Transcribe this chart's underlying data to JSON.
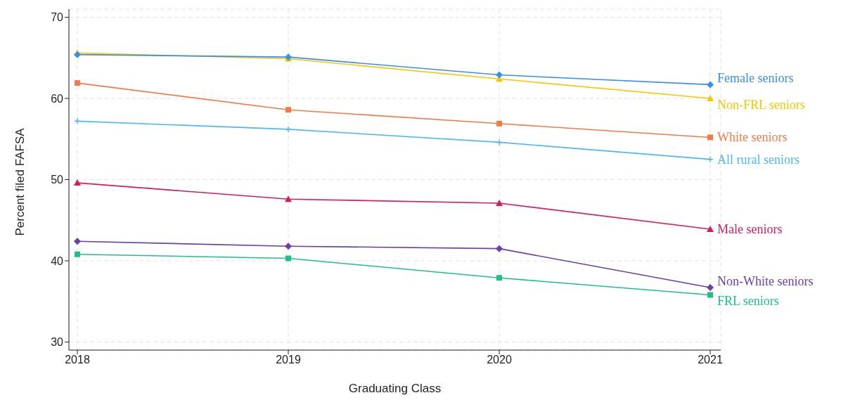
{
  "chart_data": {
    "type": "line",
    "xlabel": "Graduating Class",
    "ylabel": "Percent filed FAFSA",
    "x": [
      2018,
      2019,
      2020,
      2021
    ],
    "xlim": [
      2017.96,
      2021.05
    ],
    "xticks": [
      2018,
      2019,
      2020,
      2021
    ],
    "ylim": [
      29,
      71
    ],
    "yticks": [
      30,
      40,
      50,
      60,
      70
    ],
    "grid": true,
    "legend": false,
    "series": [
      {
        "name": "Female seniors",
        "color": "#3a8ef0",
        "marker": "diamond",
        "values": [
          65.4,
          65.1,
          62.9,
          61.7
        ]
      },
      {
        "name": "Non-FRL seniors",
        "color": "#f5c800",
        "marker": "triangle",
        "values": [
          65.6,
          64.9,
          62.4,
          60.0
        ]
      },
      {
        "name": "White seniors",
        "color": "#f47a4c",
        "marker": "square",
        "values": [
          61.9,
          58.6,
          56.9,
          55.2
        ]
      },
      {
        "name": "All rural seniors",
        "color": "#4bb8f5",
        "marker": "cross",
        "values": [
          57.2,
          56.2,
          54.6,
          52.5
        ]
      },
      {
        "name": "Male seniors",
        "color": "#d81b5a",
        "marker": "triangle",
        "values": [
          49.6,
          47.6,
          47.1,
          43.9
        ]
      },
      {
        "name": "Non-White seniors",
        "color": "#6a3fa8",
        "marker": "diamond",
        "values": [
          42.4,
          41.8,
          41.5,
          36.7
        ]
      },
      {
        "name": "FRL seniors",
        "color": "#1ec08a",
        "marker": "square",
        "values": [
          40.8,
          40.3,
          37.9,
          35.8
        ]
      }
    ]
  }
}
